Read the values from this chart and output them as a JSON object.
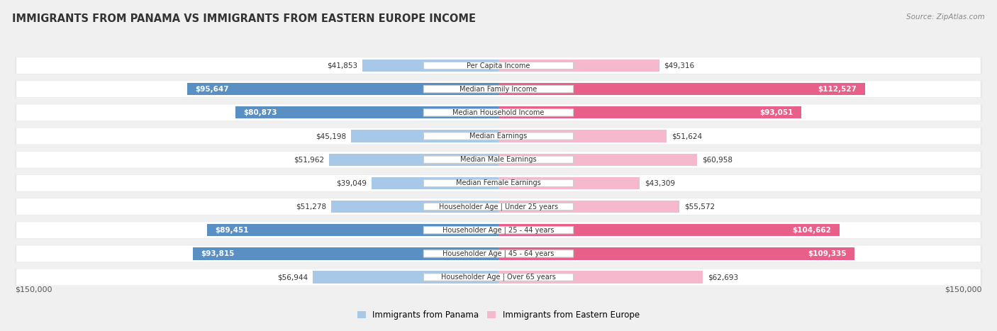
{
  "title": "IMMIGRANTS FROM PANAMA VS IMMIGRANTS FROM EASTERN EUROPE INCOME",
  "source": "Source: ZipAtlas.com",
  "categories": [
    "Per Capita Income",
    "Median Family Income",
    "Median Household Income",
    "Median Earnings",
    "Median Male Earnings",
    "Median Female Earnings",
    "Householder Age | Under 25 years",
    "Householder Age | 25 - 44 years",
    "Householder Age | 45 - 64 years",
    "Householder Age | Over 65 years"
  ],
  "panama_values": [
    41853,
    95647,
    80873,
    45198,
    51962,
    39049,
    51278,
    89451,
    93815,
    56944
  ],
  "eastern_europe_values": [
    49316,
    112527,
    93051,
    51624,
    60958,
    43309,
    55572,
    104662,
    109335,
    62693
  ],
  "panama_labels": [
    "$41,853",
    "$95,647",
    "$80,873",
    "$45,198",
    "$51,962",
    "$39,049",
    "$51,278",
    "$89,451",
    "$93,815",
    "$56,944"
  ],
  "eastern_europe_labels": [
    "$49,316",
    "$112,527",
    "$93,051",
    "$51,624",
    "$60,958",
    "$43,309",
    "$55,572",
    "$104,662",
    "$109,335",
    "$62,693"
  ],
  "panama_color_light": "#a8c8e8",
  "panama_color_dark": "#5a8fc4",
  "eastern_europe_color_light": "#f5b8cc",
  "eastern_europe_color_dark": "#e8608a",
  "max_value": 150000,
  "background_color": "#f0f0f0",
  "row_bg_color": "#e8e8e8",
  "row_inner_color": "#ffffff",
  "legend_panama": "Immigrants from Panama",
  "legend_eastern_europe": "Immigrants from Eastern Europe",
  "panama_threshold": 70000,
  "ee_threshold": 70000,
  "label_fontsize": 7.5,
  "cat_fontsize": 7.0
}
